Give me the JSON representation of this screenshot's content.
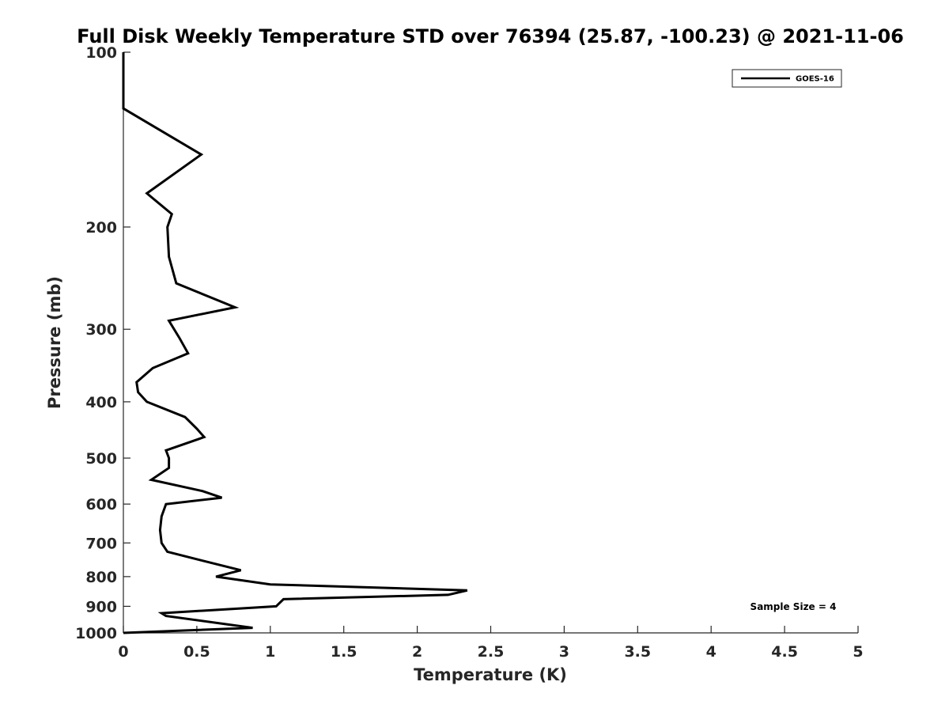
{
  "chart_data": {
    "type": "line",
    "title": "Full Disk Weekly Temperature STD over 76394 (25.87, -100.23) @ 2021-11-06",
    "xlabel": "Temperature (K)",
    "ylabel": "Pressure (mb)",
    "xlim": [
      0,
      5
    ],
    "ylim": [
      100,
      1000
    ],
    "y_scale": "log",
    "y_reversed": true,
    "grid": false,
    "legend_position": "top-right",
    "x_ticks": [
      "0",
      "0.5",
      "1",
      "1.5",
      "2",
      "2.5",
      "3",
      "3.5",
      "4",
      "4.5",
      "5"
    ],
    "y_ticks": [
      "100",
      "200",
      "300",
      "400",
      "500",
      "600",
      "700",
      "800",
      "900",
      "1000"
    ],
    "color": "#000000",
    "series": [
      {
        "name": "GOES-16",
        "points": [
          [
            0.0,
            100
          ],
          [
            0.0,
            125
          ],
          [
            0.53,
            150
          ],
          [
            0.16,
            175
          ],
          [
            0.33,
            190
          ],
          [
            0.3,
            200
          ],
          [
            0.31,
            225
          ],
          [
            0.36,
            250
          ],
          [
            0.76,
            275
          ],
          [
            0.31,
            290
          ],
          [
            0.38,
            310
          ],
          [
            0.44,
            330
          ],
          [
            0.2,
            350
          ],
          [
            0.09,
            370
          ],
          [
            0.1,
            385
          ],
          [
            0.16,
            400
          ],
          [
            0.42,
            425
          ],
          [
            0.5,
            445
          ],
          [
            0.55,
            460
          ],
          [
            0.29,
            485
          ],
          [
            0.31,
            500
          ],
          [
            0.31,
            520
          ],
          [
            0.19,
            545
          ],
          [
            0.54,
            570
          ],
          [
            0.67,
            585
          ],
          [
            0.29,
            600
          ],
          [
            0.26,
            630
          ],
          [
            0.25,
            665
          ],
          [
            0.26,
            700
          ],
          [
            0.3,
            725
          ],
          [
            0.53,
            750
          ],
          [
            0.8,
            780
          ],
          [
            0.63,
            800
          ],
          [
            1.0,
            825
          ],
          [
            2.34,
            845
          ],
          [
            2.21,
            860
          ],
          [
            1.09,
            875
          ],
          [
            1.04,
            900
          ],
          [
            0.26,
            925
          ],
          [
            0.29,
            935
          ],
          [
            0.88,
            980
          ],
          [
            0.0,
            1000
          ]
        ]
      }
    ],
    "annotations": [
      "Sample Size = 4"
    ]
  }
}
